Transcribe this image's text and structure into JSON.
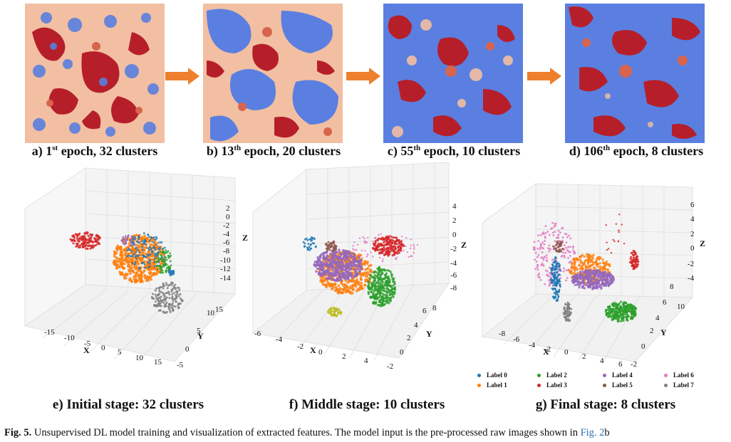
{
  "panels_top": [
    {
      "caption_a": "a) 1",
      "sup": "st",
      "caption_b": " epoch, 32 clusters"
    },
    {
      "caption_a": "b) 13",
      "sup": "th",
      "caption_b": " epoch, 20 clusters"
    },
    {
      "caption_a": "c) 55",
      "sup": "th",
      "caption_b": " epoch, 10 clusters"
    },
    {
      "caption_a": "d) 106",
      "sup": "th",
      "caption_b": " epoch, 8 clusters"
    }
  ],
  "panels_bottom": [
    {
      "caption": "e) Initial stage: 32 clusters"
    },
    {
      "caption": "f) Middle stage: 10 clusters"
    },
    {
      "caption": "g) Final stage: 8 clusters"
    }
  ],
  "colors": {
    "arrow": "#ee7f2d",
    "seg_peach": "#f2bfa2",
    "seg_blue": "#5a7fe0",
    "seg_red": "#b61f2a",
    "seg_salmon": "#d9644e",
    "link": "#2a72b5"
  },
  "legend": {
    "items": [
      {
        "label": "Label 0",
        "color": "#1f77b4"
      },
      {
        "label": "Label 1",
        "color": "#ff7f0e"
      },
      {
        "label": "Label 2",
        "color": "#2ca02c"
      },
      {
        "label": "Label 3",
        "color": "#d62728"
      },
      {
        "label": "Label 4",
        "color": "#9467bd"
      },
      {
        "label": "Label 5",
        "color": "#8c564b"
      },
      {
        "label": "Label 6",
        "color": "#e377c2"
      },
      {
        "label": "Label 7",
        "color": "#7f7f7f"
      }
    ]
  },
  "chart_data": [
    {
      "type": "scatter",
      "title": "e) Initial stage: 32 clusters",
      "xlabel": "X",
      "ylabel": "Y",
      "zlabel": "Z",
      "x_ticks": [
        "-15",
        "-10",
        "-5",
        "0",
        "5",
        "10",
        "15"
      ],
      "y_ticks": [
        "-5",
        "0",
        "5",
        "10",
        "15"
      ],
      "z_ticks": [
        "2",
        "0",
        "-2",
        "-4",
        "-6",
        "-8",
        "-10",
        "-12",
        "-14"
      ]
    },
    {
      "type": "scatter",
      "title": "f) Middle stage: 10 clusters",
      "xlabel": "X",
      "ylabel": "Y",
      "zlabel": "Z",
      "x_ticks": [
        "-6",
        "-4",
        "-2",
        "0",
        "2",
        "4"
      ],
      "y_ticks": [
        "-2",
        "0",
        "2",
        "4",
        "6",
        "8"
      ],
      "z_ticks": [
        "4",
        "2",
        "0",
        "-2",
        "-4",
        "-6",
        "-8"
      ]
    },
    {
      "type": "scatter",
      "title": "g) Final stage: 8 clusters",
      "xlabel": "X",
      "ylabel": "Y",
      "zlabel": "Z",
      "x_ticks": [
        "-8",
        "-6",
        "-4",
        "-2",
        "0",
        "2",
        "4",
        "6"
      ],
      "y_ticks": [
        "-2",
        "0",
        "2",
        "4",
        "6",
        "8",
        "10"
      ],
      "z_ticks": [
        "6",
        "4",
        "2",
        "0",
        "-2",
        "-4"
      ],
      "series": [
        {
          "name": "Label 0"
        },
        {
          "name": "Label 1"
        },
        {
          "name": "Label 2"
        },
        {
          "name": "Label 3"
        },
        {
          "name": "Label 4"
        },
        {
          "name": "Label 5"
        },
        {
          "name": "Label 6"
        },
        {
          "name": "Label 7"
        }
      ]
    }
  ],
  "caption": {
    "label": "Fig. 5.",
    "text": " Unsupervised DL model training and visualization of extracted features. The model input is the pre-processed raw images shown in ",
    "link": "Fig. 2",
    "tail": "b"
  }
}
